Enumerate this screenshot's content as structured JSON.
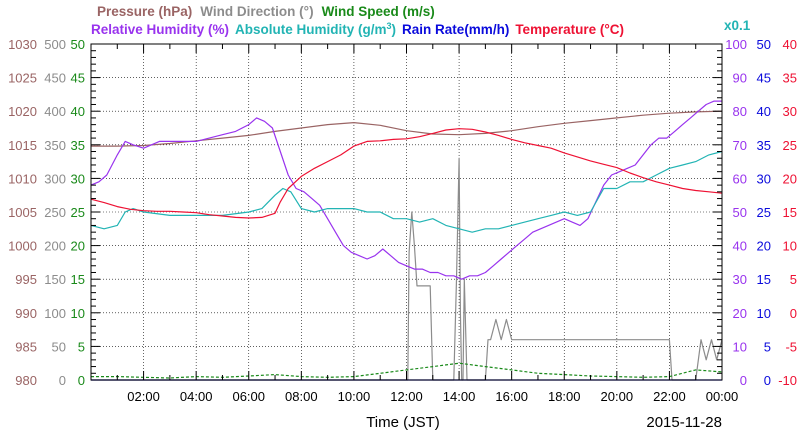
{
  "chart_data": {
    "type": "line",
    "legend": {
      "placement": "top",
      "row1": [
        {
          "label": "Pressure (hPa)",
          "color": "#9a6464"
        },
        {
          "label": "Wind Direction (°)",
          "color": "#8c8c8c"
        },
        {
          "label": "Wind Speed (m/s)",
          "color": "#1a8a1a"
        }
      ],
      "row2": [
        {
          "label": "Relative Humidity (%)",
          "color": "#9933ee"
        },
        {
          "label": "Absolute Humidity (g/m",
          "sup": "3",
          "close": ")",
          "color": "#22b4b4"
        },
        {
          "label": "Rain Rate(mm/h)",
          "color": "#0a0adc"
        },
        {
          "label": "Temperature (°C)",
          "color": "#ee1133"
        }
      ],
      "abs_humidity_scale": "x0.1"
    },
    "xlabel": "Time (JST)",
    "date": "2015-11-28",
    "x_ticks": [
      "02:00",
      "04:00",
      "06:00",
      "08:00",
      "10:00",
      "12:00",
      "14:00",
      "16:00",
      "18:00",
      "20:00",
      "22:00",
      "00:00"
    ],
    "xlim_hours": [
      0,
      24
    ],
    "grid": true,
    "y_axes": [
      {
        "name": "Pressure (hPa)",
        "color": "#9a6464",
        "side": "left",
        "ylim": [
          980,
          1030
        ],
        "ticks": [
          "980",
          "985",
          "990",
          "995",
          "1000",
          "1005",
          "1010",
          "1015",
          "1020",
          "1025",
          "1030"
        ]
      },
      {
        "name": "Wind Direction (°)",
        "color": "#8c8c8c",
        "side": "left",
        "ylim": [
          0,
          500
        ],
        "ticks": [
          "0",
          "50",
          "100",
          "150",
          "200",
          "250",
          "300",
          "350",
          "400",
          "450",
          "500"
        ]
      },
      {
        "name": "Wind Speed (m/s)",
        "color": "#1a8a1a",
        "side": "left",
        "ylim": [
          0,
          50
        ],
        "ticks": [
          "0",
          "5",
          "10",
          "15",
          "20",
          "25",
          "30",
          "35",
          "40",
          "45",
          "50"
        ]
      },
      {
        "name": "Relative Humidity (%)",
        "color": "#9933ee",
        "side": "right",
        "ylim": [
          0,
          100
        ],
        "ticks": [
          "0",
          "10",
          "20",
          "30",
          "40",
          "50",
          "60",
          "70",
          "80",
          "90",
          "100"
        ]
      },
      {
        "name": "Rain Rate(mm/h)",
        "color": "#0a0adc",
        "side": "right",
        "ylim": [
          0,
          50
        ],
        "ticks": [
          "0",
          "5",
          "10",
          "15",
          "20",
          "25",
          "30",
          "35",
          "40",
          "45",
          "50"
        ]
      },
      {
        "name": "Temperature (°C)",
        "color": "#ee1133",
        "side": "right",
        "ylim": [
          -10,
          40
        ],
        "ticks": [
          "-10",
          "-5",
          "0",
          "5",
          "10",
          "15",
          "20",
          "25",
          "30",
          "35",
          "40"
        ]
      }
    ],
    "series": [
      {
        "name": "Pressure (hPa)",
        "axis": 0,
        "color": "#9a6464",
        "style": "solid",
        "x": [
          0,
          1,
          2,
          3,
          4,
          5,
          6,
          7,
          8,
          9,
          10,
          11,
          12,
          13,
          14,
          15,
          16,
          17,
          18,
          19,
          20,
          21,
          22,
          23,
          24
        ],
        "y": [
          1014.8,
          1014.8,
          1014.9,
          1015.2,
          1015.6,
          1016.0,
          1016.4,
          1017.0,
          1017.5,
          1018.0,
          1018.3,
          1017.9,
          1017.1,
          1016.6,
          1016.5,
          1016.7,
          1017.1,
          1017.7,
          1018.2,
          1018.6,
          1019.0,
          1019.4,
          1019.7,
          1019.9,
          1020.0
        ]
      },
      {
        "name": "Wind Direction (°)",
        "axis": 1,
        "color": "#8c8c8c",
        "style": "solid",
        "x": [
          0,
          11.8,
          12.05,
          12.1,
          12.2,
          12.3,
          12.4,
          12.5,
          12.9,
          13.0,
          13.1,
          13.8,
          13.9,
          14.0,
          14.05,
          14.1,
          14.15,
          14.2,
          14.3,
          14.9,
          15.0,
          15.1,
          15.2,
          15.4,
          15.6,
          15.8,
          16.0,
          21.9,
          22.0,
          22.1,
          23.0,
          23.2,
          23.4,
          23.6,
          23.8,
          24
        ],
        "y": [
          0,
          0,
          0,
          190,
          250,
          200,
          140,
          140,
          140,
          0,
          0,
          0,
          150,
          330,
          100,
          0,
          0,
          150,
          0,
          0,
          0,
          60,
          60,
          90,
          60,
          90,
          60,
          60,
          60,
          0,
          0,
          60,
          30,
          60,
          30,
          60
        ]
      },
      {
        "name": "Wind Speed (m/s)",
        "axis": 2,
        "color": "#1a8a1a",
        "style": "dashed",
        "x": [
          0,
          1,
          2,
          3,
          4,
          5,
          6,
          7,
          8,
          9,
          10,
          11,
          12,
          13,
          14,
          15,
          16,
          17,
          18,
          19,
          20,
          21,
          22,
          23,
          24
        ],
        "y": [
          0.5,
          0.5,
          0.4,
          0.3,
          0.5,
          0.4,
          0.6,
          0.8,
          0.5,
          0.4,
          0.5,
          1.0,
          1.5,
          2.0,
          2.5,
          2.0,
          1.5,
          1.0,
          0.8,
          0.6,
          0.5,
          0.4,
          0.5,
          1.5,
          1.2
        ]
      },
      {
        "name": "Relative Humidity (%)",
        "axis": 3,
        "color": "#9933ee",
        "style": "solid",
        "x": [
          0,
          0.3,
          0.6,
          1.0,
          1.3,
          1.6,
          2.0,
          2.3,
          2.6,
          3.0,
          3.5,
          4.0,
          4.5,
          5.0,
          5.5,
          6.0,
          6.3,
          6.6,
          6.9,
          7.2,
          7.5,
          7.8,
          8.1,
          8.4,
          8.7,
          9.0,
          9.3,
          9.6,
          9.9,
          10.2,
          10.5,
          10.8,
          11.1,
          11.4,
          11.7,
          12.0,
          12.3,
          12.6,
          12.9,
          13.2,
          13.5,
          13.8,
          14.1,
          14.4,
          14.7,
          15.0,
          15.3,
          15.6,
          15.9,
          16.2,
          16.5,
          16.8,
          17.1,
          17.4,
          17.7,
          18.0,
          18.3,
          18.6,
          18.9,
          19.2,
          19.5,
          19.8,
          20.1,
          20.4,
          20.7,
          21.0,
          21.3,
          21.6,
          21.9,
          22.2,
          22.5,
          22.8,
          23.1,
          23.4,
          23.7,
          24
        ],
        "y": [
          58,
          59,
          61,
          67,
          71,
          70,
          69,
          70,
          71,
          71,
          71,
          71,
          72,
          73,
          74,
          76,
          78,
          77,
          75,
          68,
          61,
          57,
          56,
          54,
          52,
          48,
          44,
          40,
          38,
          37,
          36,
          37,
          39,
          37,
          35,
          34,
          33,
          33,
          32,
          32,
          31,
          31,
          30,
          31,
          31,
          32,
          34,
          36,
          38,
          40,
          42,
          44,
          45,
          46,
          47,
          48,
          47,
          46,
          48,
          53,
          58,
          61,
          62,
          63,
          64,
          67,
          70,
          72,
          72,
          74,
          76,
          78,
          80,
          82,
          83,
          83
        ]
      },
      {
        "name": "Absolute Humidity (g/m3) x0.1",
        "axis": 3,
        "color": "#22b4b4",
        "style": "solid",
        "x": [
          0,
          0.5,
          1.0,
          1.3,
          1.6,
          2.0,
          3.0,
          4.0,
          5.0,
          6.0,
          6.5,
          7.0,
          7.3,
          7.6,
          8.0,
          8.5,
          9.0,
          9.5,
          10.0,
          10.5,
          11.0,
          11.5,
          12.0,
          12.5,
          13.0,
          13.5,
          14.0,
          14.5,
          15.0,
          15.5,
          16.0,
          16.5,
          17.0,
          17.5,
          18.0,
          18.5,
          19.0,
          19.5,
          20.0,
          20.5,
          21.0,
          21.5,
          22.0,
          22.5,
          23.0,
          23.5,
          24
        ],
        "y": [
          46,
          45,
          46,
          50,
          51,
          50,
          49,
          49,
          49,
          50,
          51,
          55,
          57,
          56,
          51,
          50,
          51,
          51,
          51,
          50,
          50,
          48,
          48,
          47,
          48,
          46,
          45,
          44,
          45,
          45,
          46,
          47,
          48,
          49,
          50,
          49,
          50,
          57,
          57,
          59,
          59,
          61,
          63,
          64,
          65,
          67,
          68
        ]
      },
      {
        "name": "Rain Rate(mm/h)",
        "axis": 4,
        "color": "#0a0adc",
        "style": "solid",
        "x": [
          0,
          24
        ],
        "y": [
          0,
          0
        ]
      },
      {
        "name": "Temperature (°C)",
        "axis": 5,
        "color": "#ee1133",
        "style": "solid",
        "x": [
          0,
          0.5,
          1.0,
          1.5,
          2.0,
          2.5,
          3.0,
          3.5,
          4.0,
          4.5,
          5.0,
          5.5,
          6.0,
          6.5,
          7.0,
          7.2,
          7.5,
          8.0,
          8.5,
          9.0,
          9.5,
          10.0,
          10.5,
          11.0,
          11.5,
          12.0,
          12.5,
          13.0,
          13.5,
          14.0,
          14.5,
          15.0,
          15.5,
          16.0,
          16.5,
          17.0,
          17.5,
          18.0,
          18.5,
          19.0,
          19.5,
          20.0,
          20.5,
          21.0,
          21.5,
          22.0,
          22.5,
          23.0,
          23.5,
          24
        ],
        "y": [
          16.9,
          16.4,
          15.8,
          15.4,
          15.2,
          15.1,
          15.1,
          15.0,
          14.9,
          14.6,
          14.4,
          14.2,
          14.1,
          14.2,
          14.8,
          16.5,
          18.5,
          20.3,
          21.5,
          22.5,
          23.5,
          24.8,
          25.5,
          25.6,
          25.8,
          25.9,
          26.2,
          26.7,
          27.2,
          27.4,
          27.3,
          26.9,
          26.4,
          25.8,
          25.3,
          24.9,
          24.5,
          23.8,
          23.2,
          22.6,
          22.1,
          21.6,
          20.8,
          20.1,
          19.5,
          19.0,
          18.5,
          18.2,
          18.0,
          17.8
        ]
      }
    ]
  }
}
